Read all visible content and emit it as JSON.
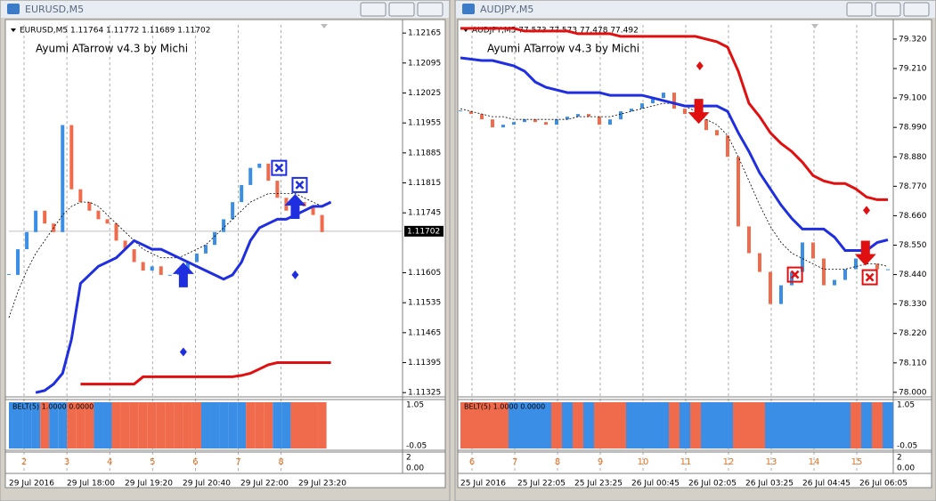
{
  "windows": [
    {
      "title": "EURUSD,M5",
      "header": "EURUSD,M5  1.11764 1.11772 1.11689 1.11702",
      "indicator": "Ayumi ATarrow v4.3 by Michi",
      "ylim": [
        1.11315,
        1.12184
      ],
      "xlim": [
        0,
        44
      ],
      "yticks": [
        1.12165,
        1.12095,
        1.12025,
        1.11955,
        1.11885,
        1.11815,
        1.11745,
        1.11605,
        1.11535,
        1.11465,
        1.11395,
        1.11325
      ],
      "current_price": 1.11702,
      "up_color": "#3a8ee6",
      "down_color": "#f06a4c",
      "band_color": "#1f2fe0",
      "stop_color": "#e01010",
      "close": [
        1.116,
        1.1166,
        1.117,
        1.1175,
        1.1172,
        1.117,
        1.1195,
        1.118,
        1.1177,
        1.1175,
        1.1173,
        1.1172,
        1.1168,
        1.1166,
        1.1163,
        1.1161,
        1.1162,
        1.116,
        1.116,
        1.1161,
        1.1163,
        1.1165,
        1.1167,
        1.117,
        1.1173,
        1.1177,
        1.1181,
        1.1185,
        1.1186,
        1.1182,
        1.1178,
        1.1175,
        1.1177,
        1.1176,
        1.1174,
        1.117,
        null
      ],
      "band": [
        null,
        null,
        null,
        1.11325,
        1.1133,
        1.11345,
        1.1137,
        1.1145,
        1.1158,
        1.116,
        1.1162,
        1.1163,
        1.1164,
        1.1166,
        1.1168,
        1.1167,
        1.1166,
        1.1166,
        1.1165,
        1.1164,
        1.1163,
        1.1162,
        1.1161,
        1.116,
        1.1159,
        1.116,
        1.1163,
        1.1168,
        1.1171,
        1.1172,
        1.1173,
        1.1173,
        1.1174,
        1.1175,
        1.1176,
        1.1176,
        1.1177
      ],
      "stop": [
        null,
        null,
        null,
        null,
        null,
        null,
        null,
        null,
        1.11345,
        1.11345,
        1.11345,
        1.11345,
        1.11345,
        1.11345,
        1.11345,
        1.11362,
        1.11362,
        1.11362,
        1.11362,
        1.11362,
        1.11362,
        1.11362,
        1.11362,
        1.11362,
        1.11362,
        1.11362,
        1.11365,
        1.1137,
        1.1138,
        1.1139,
        1.11395,
        1.11395,
        1.11395,
        1.11395,
        1.11395,
        1.11395,
        1.11395
      ],
      "average": [
        1.115,
        1.1156,
        1.1161,
        1.1165,
        1.1168,
        1.1171,
        1.1174,
        1.1176,
        1.1177,
        1.1177,
        1.1176,
        1.1174,
        1.1172,
        1.117,
        1.1168,
        1.1166,
        1.1165,
        1.1164,
        1.1164,
        1.1164,
        1.1165,
        1.1166,
        1.1167,
        1.1169,
        1.1171,
        1.1173,
        1.1175,
        1.1177,
        1.1178,
        1.1179,
        1.1179,
        1.1179,
        1.1179,
        1.1178,
        1.1177,
        1.1176,
        null
      ],
      "signals": [
        {
          "type": "up",
          "x": 19.5,
          "y": 1.116
        },
        {
          "type": "up",
          "x": 32,
          "y": 1.1176
        },
        {
          "type": "diamond",
          "x": 19.5,
          "y": 1.1142
        },
        {
          "type": "diamond",
          "x": 32,
          "y": 1.116
        },
        {
          "type": "xbox",
          "x": 30.2,
          "y": 1.1185
        },
        {
          "type": "xbox",
          "x": 32.5,
          "y": 1.1181
        }
      ],
      "belt_label": "BELT(5) 1.0000 0.0000",
      "belt_ticks": [
        "1.05",
        "-0.05"
      ],
      "belt": [
        1,
        1,
        1,
        1,
        0,
        1,
        1,
        0,
        0,
        0,
        1,
        1,
        0,
        0,
        0,
        0,
        0,
        0,
        0,
        0,
        0,
        0,
        1,
        1,
        1,
        1,
        1,
        0,
        0,
        0,
        1,
        1,
        0,
        0,
        0,
        0,
        null
      ],
      "numbers": [
        "2",
        "3",
        "4",
        "5",
        "6",
        "7",
        "8"
      ],
      "number_ticks": [
        "2",
        "0.00"
      ],
      "time_labels": [
        "29 Jul 2016",
        "29 Jul 18:00",
        "29 Jul 19:20",
        "29 Jul 20:40",
        "29 Jul 22:00",
        "29 Jul 23:20"
      ]
    },
    {
      "title": "AUDJPY,M5",
      "header": "AUDJPY,M5  77.573 77.573 77.478 77.492",
      "indicator": "Ayumi ATarrow v4.3 by Michi",
      "ylim": [
        77.983,
        79.373
      ],
      "xlim": [
        0,
        40.5
      ],
      "yticks": [
        {
          "value": 79.32,
          "label": "79.320"
        },
        {
          "value": 79.21,
          "label": "79.210"
        },
        {
          "value": 79.1,
          "label": "79.100"
        },
        {
          "value": 78.99,
          "label": "78.990"
        },
        {
          "value": 78.88,
          "label": "78.880"
        },
        {
          "value": 78.77,
          "label": "78.770"
        },
        {
          "value": 78.66,
          "label": "78.660"
        },
        {
          "value": 78.55,
          "label": "78.550"
        },
        {
          "value": 78.44,
          "label": "78.440"
        },
        {
          "value": 78.33,
          "label": "78.330"
        },
        {
          "value": 78.22,
          "label": "78.220"
        },
        {
          "value": 78.11,
          "label": "78.110"
        },
        {
          "value": 78,
          "label": "78.000"
        }
      ],
      "up_color": "#3a8ee6",
      "down_color": "#f06a4c",
      "band_color": "#1f2fe0",
      "stop_color": "#e01010",
      "close": [
        79.05,
        79.04,
        79.02,
        78.99,
        79.0,
        79.01,
        79.02,
        79.01,
        79.0,
        79.02,
        79.03,
        79.04,
        79.03,
        79.0,
        79.02,
        79.05,
        79.06,
        79.08,
        79.1,
        79.12,
        79.06,
        79.04,
        79.02,
        78.98,
        78.96,
        78.88,
        78.62,
        78.52,
        78.45,
        78.33,
        78.4,
        78.45,
        78.56,
        78.5,
        78.4,
        78.42,
        78.46,
        78.5,
        78.48,
        78.46,
        78.46
      ],
      "band": [
        79.25,
        79.245,
        79.24,
        79.24,
        79.23,
        79.22,
        79.2,
        79.16,
        79.14,
        79.13,
        79.12,
        79.12,
        79.12,
        79.12,
        79.11,
        79.11,
        79.11,
        79.11,
        79.1,
        79.09,
        79.08,
        79.07,
        79.07,
        79.07,
        79.07,
        79.05,
        78.97,
        78.9,
        78.82,
        78.76,
        78.7,
        78.65,
        78.61,
        78.61,
        78.61,
        78.58,
        78.53,
        78.53,
        78.53,
        78.56,
        78.57
      ],
      "stop": [
        79.36,
        79.36,
        79.36,
        79.36,
        79.36,
        79.36,
        79.35,
        79.35,
        79.35,
        79.35,
        79.35,
        79.34,
        79.34,
        79.34,
        79.34,
        79.33,
        79.33,
        79.33,
        79.33,
        79.33,
        79.33,
        79.33,
        79.33,
        79.32,
        79.31,
        79.29,
        79.2,
        79.08,
        79.03,
        78.97,
        78.93,
        78.9,
        78.86,
        78.81,
        78.79,
        78.78,
        78.78,
        78.76,
        78.73,
        78.72,
        78.72
      ],
      "average": [
        79.06,
        79.05,
        79.04,
        79.03,
        79.03,
        79.02,
        79.02,
        79.02,
        79.02,
        79.02,
        79.02,
        79.03,
        79.03,
        79.03,
        79.03,
        79.04,
        79.05,
        79.06,
        79.07,
        79.08,
        79.08,
        79.07,
        79.05,
        79.02,
        79.0,
        78.96,
        78.88,
        78.79,
        78.7,
        78.62,
        78.56,
        78.52,
        78.5,
        78.48,
        78.46,
        78.46,
        78.46,
        78.47,
        78.48,
        78.48,
        78.47
      ],
      "signals": [
        {
          "type": "down",
          "x": 22.3,
          "y": 79.05
        },
        {
          "type": "down",
          "x": 37.9,
          "y": 78.52
        },
        {
          "type": "diamond",
          "x": 22.4,
          "y": 79.22
        },
        {
          "type": "diamond",
          "x": 38,
          "y": 78.68
        },
        {
          "type": "xbox",
          "x": 31.3,
          "y": 78.44
        },
        {
          "type": "xbox",
          "x": 38.3,
          "y": 78.43
        }
      ],
      "belt_label": "BELT(5) 1.0000 0.0000",
      "belt_ticks": [
        "1.05",
        "-0.05"
      ],
      "belt": [
        0,
        0,
        0,
        0,
        0,
        1,
        1,
        1,
        1,
        0,
        1,
        0,
        1,
        0,
        0,
        0,
        1,
        1,
        1,
        1,
        0,
        1,
        0,
        1,
        1,
        1,
        0,
        0,
        0,
        1,
        1,
        1,
        1,
        1,
        1,
        1,
        1,
        0,
        1,
        0,
        1
      ],
      "numbers": [
        "6",
        "7",
        "8",
        "9",
        "10",
        "11",
        "12",
        "13",
        "14",
        "15"
      ],
      "number_ticks": [
        "2",
        "0.00"
      ],
      "time_labels": [
        "25 Jul 2016",
        "25 Jul 22:05",
        "25 Jul 23:25",
        "26 Jul 00:45",
        "26 Jul 02:05",
        "26 Jul 03:25",
        "26 Jul 04:45",
        "26 Jul 06:05"
      ]
    }
  ]
}
